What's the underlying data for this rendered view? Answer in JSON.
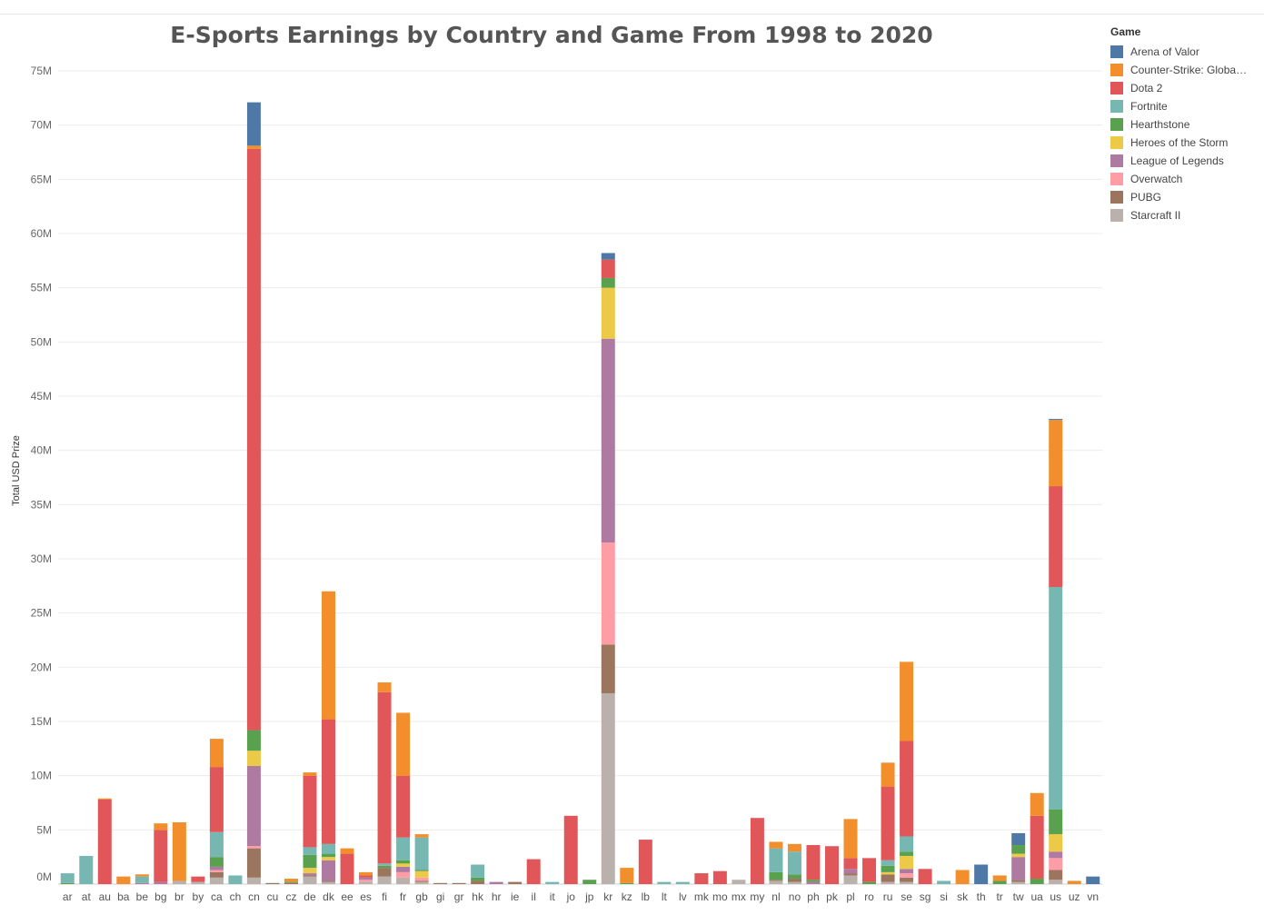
{
  "chart_data": {
    "type": "bar",
    "stacked": true,
    "title": "E-Sports Earnings by Country and Game From 1998 to 2020",
    "xlabel": "",
    "ylabel": "Total USD Prize",
    "ylim": [
      0,
      76000000
    ],
    "yticks": [
      0,
      5000000,
      10000000,
      15000000,
      20000000,
      25000000,
      30000000,
      35000000,
      40000000,
      45000000,
      50000000,
      55000000,
      60000000,
      65000000,
      70000000,
      75000000
    ],
    "ytick_labels": [
      "0M",
      "5M",
      "10M",
      "15M",
      "20M",
      "25M",
      "30M",
      "35M",
      "40M",
      "45M",
      "50M",
      "55M",
      "60M",
      "65M",
      "70M",
      "75M"
    ],
    "grid": true,
    "legend_title": "Game",
    "legend_position": "top-right",
    "categories": [
      "ar",
      "at",
      "au",
      "ba",
      "be",
      "bg",
      "br",
      "by",
      "ca",
      "ch",
      "cn",
      "cu",
      "cz",
      "de",
      "dk",
      "ee",
      "es",
      "fi",
      "fr",
      "gb",
      "gi",
      "gr",
      "hk",
      "hr",
      "ie",
      "il",
      "it",
      "jo",
      "jp",
      "kr",
      "kz",
      "lb",
      "lt",
      "lv",
      "mk",
      "mo",
      "mx",
      "my",
      "nl",
      "no",
      "ph",
      "pk",
      "pl",
      "ro",
      "ru",
      "se",
      "sg",
      "si",
      "sk",
      "th",
      "tr",
      "tw",
      "ua",
      "us",
      "uz",
      "vn"
    ],
    "series": [
      {
        "name": "Arena of Valor",
        "color": "#4e79a7",
        "values": [
          0,
          0,
          0,
          0,
          0,
          0,
          0,
          0,
          0,
          0,
          4.0,
          0,
          0,
          0,
          0,
          0,
          0,
          0,
          0,
          0,
          0,
          0,
          0,
          0,
          0,
          0,
          0,
          0,
          0,
          0.6,
          0,
          0,
          0,
          0,
          0,
          0,
          0,
          0,
          0,
          0,
          0,
          0,
          0,
          0,
          0,
          0,
          0,
          0,
          0,
          1.8,
          0,
          1.1,
          0,
          0.1,
          0,
          0.7
        ]
      },
      {
        "name": "Counter-Strike: Global Offensive",
        "color": "#f28e2b",
        "values": [
          0,
          0,
          0.1,
          0.7,
          0.2,
          0.6,
          5.4,
          0,
          2.6,
          0,
          0.3,
          0,
          0.3,
          0.3,
          11.8,
          0.5,
          0.3,
          0.9,
          5.8,
          0.3,
          0,
          0,
          0,
          0,
          0,
          0,
          0,
          0,
          0,
          0,
          1.4,
          0,
          0,
          0,
          0,
          0,
          0,
          0,
          0.6,
          0.7,
          0,
          0,
          3.6,
          0,
          2.2,
          7.3,
          0,
          0,
          1.3,
          0,
          0.5,
          0,
          2.1,
          6.1,
          0.3,
          0
        ]
      },
      {
        "name": "Dota 2",
        "color": "#e15759",
        "values": [
          0,
          0,
          7.8,
          0,
          0,
          4.8,
          0,
          0.5,
          6.0,
          0,
          53.6,
          0,
          0,
          6.6,
          11.5,
          2.8,
          0.2,
          15.8,
          5.7,
          0,
          0,
          0,
          0,
          0,
          0,
          2.3,
          0,
          6.3,
          0,
          1.7,
          0,
          4.1,
          0,
          0,
          1.0,
          1.2,
          0,
          6.1,
          0,
          0,
          3.2,
          3.5,
          1.0,
          2.2,
          6.8,
          8.8,
          1.4,
          0,
          0,
          0,
          0,
          0,
          5.8,
          9.3,
          0,
          0
        ]
      },
      {
        "name": "Fortnite",
        "color": "#76b7b2",
        "values": [
          0.9,
          2.6,
          0,
          0,
          0.6,
          0,
          0,
          0,
          2.3,
          0.8,
          0,
          0,
          0,
          0.7,
          0.9,
          0,
          0,
          0.2,
          2.1,
          3.0,
          0,
          0,
          1.2,
          0,
          0,
          0,
          0.2,
          0,
          0,
          0,
          0,
          0,
          0.2,
          0.2,
          0,
          0,
          0,
          0,
          2.2,
          2.1,
          0,
          0,
          0,
          0,
          0.5,
          1.4,
          0,
          0.3,
          0,
          0,
          0,
          0,
          0,
          20.5,
          0,
          0
        ]
      },
      {
        "name": "Hearthstone",
        "color": "#59a14f",
        "values": [
          0.1,
          0,
          0,
          0,
          0,
          0,
          0,
          0,
          0.9,
          0,
          1.9,
          0,
          0.1,
          1.2,
          0.3,
          0,
          0,
          0.2,
          0.3,
          0.1,
          0,
          0,
          0.3,
          0,
          0,
          0,
          0,
          0,
          0.4,
          0.9,
          0.1,
          0,
          0,
          0,
          0,
          0,
          0,
          0,
          0.7,
          0.4,
          0.2,
          0,
          0,
          0.2,
          0.6,
          0.4,
          0,
          0,
          0,
          0,
          0.3,
          0.8,
          0.5,
          2.3,
          0,
          0
        ]
      },
      {
        "name": "Heroes of the Storm",
        "color": "#edc948",
        "values": [
          0,
          0,
          0,
          0,
          0,
          0,
          0,
          0,
          0,
          0,
          1.4,
          0,
          0,
          0.5,
          0.3,
          0,
          0,
          0,
          0.3,
          0.6,
          0,
          0,
          0,
          0,
          0,
          0,
          0,
          0,
          0,
          4.7,
          0,
          0,
          0,
          0,
          0,
          0,
          0,
          0,
          0,
          0,
          0,
          0,
          0,
          0,
          0.2,
          1.2,
          0,
          0,
          0,
          0,
          0,
          0.3,
          0,
          1.6,
          0,
          0
        ]
      },
      {
        "name": "League of Legends",
        "color": "#af7aa1",
        "values": [
          0,
          0,
          0,
          0,
          0.1,
          0.2,
          0,
          0,
          0.3,
          0,
          7.4,
          0,
          0,
          0.2,
          1.9,
          0,
          0.2,
          0,
          0.5,
          0,
          0,
          0,
          0,
          0.2,
          0,
          0,
          0,
          0,
          0,
          18.8,
          0,
          0,
          0,
          0,
          0,
          0,
          0,
          0,
          0,
          0,
          0.2,
          0,
          0.4,
          0,
          0,
          0.4,
          0,
          0,
          0,
          0,
          0,
          2.1,
          0,
          0.6,
          0,
          0
        ]
      },
      {
        "name": "Overwatch",
        "color": "#ff9da7",
        "values": [
          0,
          0,
          0,
          0,
          0,
          0,
          0,
          0,
          0.2,
          0,
          0.2,
          0,
          0,
          0,
          0,
          0,
          0.2,
          0,
          0.5,
          0.3,
          0,
          0,
          0,
          0,
          0,
          0,
          0,
          0,
          0,
          9.4,
          0,
          0,
          0,
          0,
          0,
          0,
          0,
          0,
          0,
          0,
          0,
          0,
          0,
          0,
          0,
          0.4,
          0,
          0,
          0,
          0,
          0,
          0,
          0,
          1.1,
          0,
          0
        ]
      },
      {
        "name": "PUBG",
        "color": "#9c755f",
        "values": [
          0,
          0,
          0,
          0,
          0,
          0,
          0,
          0,
          0.5,
          0,
          2.7,
          0.1,
          0.1,
          0.1,
          0.1,
          0,
          0,
          0.8,
          0,
          0.1,
          0.1,
          0.1,
          0.3,
          0,
          0.2,
          0,
          0,
          0,
          0,
          4.5,
          0,
          0,
          0,
          0,
          0,
          0,
          0,
          0,
          0.1,
          0.3,
          0,
          0,
          0.2,
          0,
          0.7,
          0.4,
          0,
          0,
          0,
          0,
          0,
          0.2,
          0,
          0.9,
          0,
          0
        ]
      },
      {
        "name": "Starcraft II",
        "color": "#bab0ac",
        "values": [
          0,
          0,
          0,
          0,
          0,
          0,
          0.3,
          0.2,
          0.6,
          0,
          0.6,
          0,
          0,
          0.7,
          0.2,
          0,
          0.2,
          0.7,
          0.6,
          0.2,
          0,
          0,
          0,
          0,
          0,
          0,
          0,
          0,
          0,
          17.6,
          0,
          0,
          0,
          0,
          0,
          0,
          0.4,
          0,
          0.3,
          0.2,
          0,
          0,
          0.8,
          0,
          0.2,
          0.2,
          0,
          0,
          0,
          0,
          0,
          0.2,
          0,
          0.4,
          0,
          0
        ]
      }
    ]
  }
}
